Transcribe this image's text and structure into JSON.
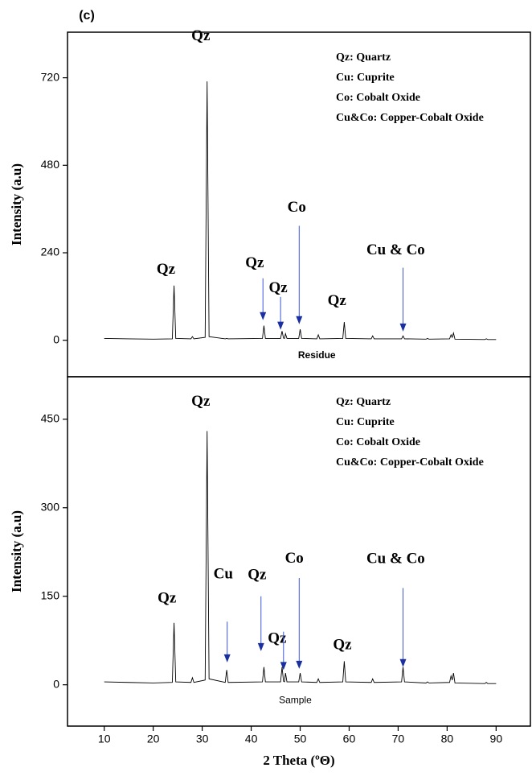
{
  "chart_data": [
    {
      "type": "line",
      "panel_label": "(c)",
      "ylabel": "Intensity (a.u)",
      "label": "Residue",
      "label_at": [
        53.4,
        -42
      ],
      "x": [
        10,
        15,
        20,
        23.9,
        24.25,
        24.6,
        27.7,
        28,
        28.3,
        30.6,
        31,
        31.4,
        34.7,
        35,
        35.3,
        42.3,
        42.6,
        42.9,
        46,
        46.3,
        46.6,
        46.8,
        47,
        47.3,
        49.7,
        50,
        50.3,
        53.4,
        53.7,
        54,
        58.7,
        59,
        59.3,
        64.5,
        64.8,
        65.1,
        70.7,
        71,
        71.3,
        75.7,
        76,
        76.3,
        80.5,
        80.8,
        81.05,
        81.3,
        81.6,
        87.7,
        88,
        88.3,
        90
      ],
      "series": [
        {
          "color": "#000000",
          "values": [
            5,
            4,
            3,
            4,
            150,
            5,
            4,
            10,
            4,
            8,
            710,
            10,
            4,
            5,
            4,
            5,
            40,
            5,
            5,
            25,
            6,
            5,
            18,
            5,
            5,
            30,
            5,
            4,
            15,
            4,
            5,
            50,
            5,
            4,
            12,
            4,
            4,
            12,
            4,
            3,
            5,
            3,
            4,
            15,
            8,
            20,
            3,
            2,
            4,
            2,
            2
          ]
        }
      ],
      "xlim": [
        2.5,
        97
      ],
      "ylim": [
        -100,
        845
      ],
      "yticks": [
        0,
        240,
        480,
        720
      ],
      "notes": [
        "Qz: Quartz",
        "Cu: Cuprite",
        "Co: Cobalt Oxide",
        "Cu&Co: Copper-Cobalt Oxide"
      ],
      "annotations": [
        {
          "text": "Qz",
          "xytext": [
            29.7,
            832
          ]
        },
        {
          "text": "Qz",
          "xytext": [
            22.6,
            192
          ]
        },
        {
          "text": "Qz",
          "xytext": [
            40.7,
            210
          ],
          "arrow": [
            42.4,
            170,
            42.4,
            55
          ]
        },
        {
          "text": "Qz",
          "xytext": [
            45.5,
            141
          ],
          "arrow": [
            46.0,
            119,
            46.0,
            29
          ]
        },
        {
          "text": "Co",
          "xytext": [
            49.3,
            362
          ],
          "arrow": [
            49.8,
            314,
            49.8,
            44
          ]
        },
        {
          "text": "Qz",
          "xytext": [
            57.5,
            106
          ]
        },
        {
          "text": "Cu & Co",
          "xytext": [
            69.5,
            245
          ],
          "arrow": [
            71.0,
            199,
            71.0,
            24
          ]
        }
      ]
    },
    {
      "type": "line",
      "ylabel": "Intensity (a.u)",
      "xlabel": "2 Theta (ºΘ)",
      "label": "Sample",
      "label_at": [
        49.0,
        -27
      ],
      "x": [
        10,
        15,
        20,
        23.9,
        24.25,
        24.6,
        27.7,
        28,
        28.3,
        30.6,
        31,
        31.4,
        34.7,
        35,
        35.3,
        42.3,
        42.6,
        42.9,
        46,
        46.3,
        46.6,
        46.8,
        47,
        47.3,
        49.7,
        50,
        50.3,
        53.4,
        53.7,
        54,
        58.7,
        59,
        59.3,
        64.5,
        64.8,
        65.1,
        70.7,
        71,
        71.3,
        75.7,
        76,
        76.3,
        80.5,
        80.8,
        81.05,
        81.3,
        81.6,
        87.7,
        88,
        88.3,
        90
      ],
      "series": [
        {
          "color": "#000000",
          "values": [
            5,
            4,
            3,
            4,
            105,
            5,
            4,
            12,
            4,
            8,
            430,
            10,
            4,
            25,
            4,
            5,
            30,
            5,
            5,
            30,
            6,
            5,
            20,
            5,
            5,
            20,
            5,
            4,
            10,
            4,
            5,
            40,
            5,
            4,
            10,
            4,
            5,
            30,
            5,
            3,
            5,
            3,
            4,
            15,
            8,
            20,
            3,
            2,
            4,
            2,
            2
          ]
        }
      ],
      "xlim": [
        2.5,
        97
      ],
      "xticks": [
        10,
        20,
        30,
        40,
        50,
        60,
        70,
        80,
        90
      ],
      "ylim": [
        -70,
        522
      ],
      "yticks": [
        0,
        150,
        300,
        450
      ],
      "notes": [
        "Qz: Quartz",
        "Cu: Cuprite",
        "Co: Cobalt Oxide",
        "Cu&Co: Copper-Cobalt Oxide"
      ],
      "annotations": [
        {
          "text": "Qz",
          "xytext": [
            29.7,
            479
          ]
        },
        {
          "text": "Qz",
          "xytext": [
            22.8,
            145
          ]
        },
        {
          "text": "Cu",
          "xytext": [
            34.3,
            186
          ],
          "arrow": [
            35.1,
            107,
            35.1,
            38
          ]
        },
        {
          "text": "Qz",
          "xytext": [
            41.2,
            185
          ],
          "arrow": [
            42.0,
            150,
            42.0,
            57
          ]
        },
        {
          "text": "Qz",
          "xytext": [
            45.3,
            77
          ],
          "arrow": [
            46.6,
            90,
            46.6,
            25
          ]
        },
        {
          "text": "Co",
          "xytext": [
            48.8,
            213
          ],
          "arrow": [
            49.8,
            181,
            49.8,
            27
          ]
        },
        {
          "text": "Qz",
          "xytext": [
            58.6,
            66
          ]
        },
        {
          "text": "Cu & Co",
          "xytext": [
            69.5,
            212
          ],
          "arrow": [
            71.0,
            164,
            71.0,
            30
          ]
        }
      ]
    }
  ]
}
